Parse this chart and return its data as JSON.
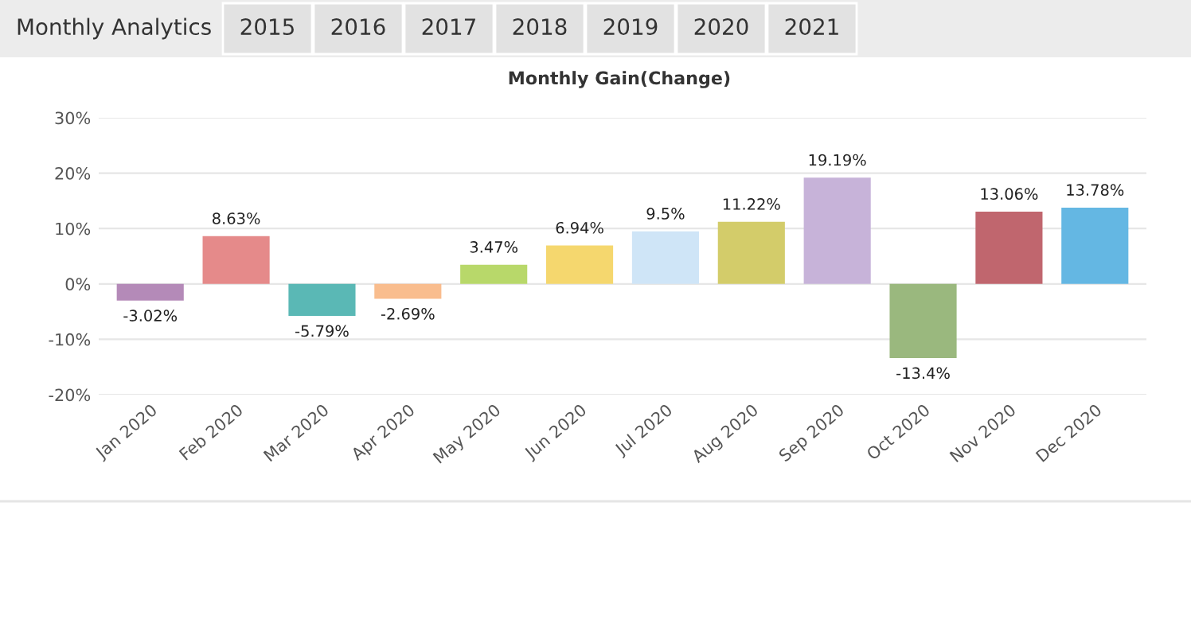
{
  "chart_data": {
    "type": "bar",
    "title": "Monthly Analytics",
    "subtitle": "Monthly Gain(Change)",
    "annotations": [
      "2015",
      "2016",
      "2017",
      "2018",
      "2019",
      "2020",
      "2021"
    ],
    "categories": [
      "Jan 2020",
      "Feb 2020",
      "Mar 2020",
      "Apr 2020",
      "May 2020",
      "Jun 2020",
      "Jul 2020",
      "Aug 2020",
      "Sep 2020",
      "Oct 2020",
      "Nov 2020",
      "Dec 2020"
    ],
    "values": [
      -3.02,
      8.63,
      -5.79,
      -2.69,
      3.47,
      6.94,
      9.5,
      11.22,
      19.19,
      -13.4,
      13.06,
      13.78
    ],
    "value_labels": [
      "-3.02%",
      "8.63%",
      "-5.79%",
      "-2.69%",
      "3.47%",
      "6.94%",
      "9.5%",
      "11.22%",
      "19.19%",
      "-13.4%",
      "13.06%",
      "13.78%"
    ],
    "colors": [
      "#b48ab8",
      "#e58a8a",
      "#5ab8b5",
      "#f9bd8e",
      "#b8d86a",
      "#f5d76e",
      "#cfe5f7",
      "#d3cc6a",
      "#c7b3d9",
      "#9ab87e",
      "#c0666e",
      "#64b7e3"
    ],
    "ylim": [
      -20,
      30
    ],
    "yticks": [
      {
        "value": -20,
        "label": "-20%"
      },
      {
        "value": -10,
        "label": "-10%"
      },
      {
        "value": 0,
        "label": "0%"
      },
      {
        "value": 10,
        "label": "10%"
      },
      {
        "value": 20,
        "label": "20%"
      },
      {
        "value": 30,
        "label": "30%"
      }
    ],
    "grid": "y",
    "legend": false
  }
}
